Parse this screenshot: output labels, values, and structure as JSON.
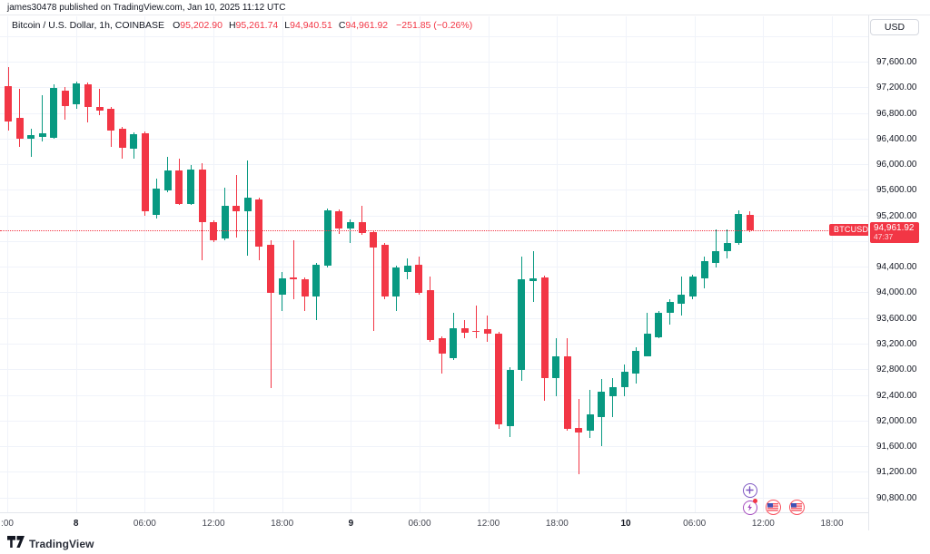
{
  "attribution": "james30478 published on TradingView.com, Jan 10, 2025 11:12 UTC",
  "legend": {
    "symbol_title": "Bitcoin / U.S. Dollar, 1h, COINBASE",
    "o_label": "O",
    "o_value": "95,202.90",
    "h_label": "H",
    "h_value": "95,261.74",
    "l_label": "L",
    "l_value": "94,940.51",
    "c_label": "C",
    "c_value": "94,961.92",
    "change": "−251.85 (−0.26%)"
  },
  "currency_button": "USD",
  "price_label": {
    "symbol": "BTCUSD",
    "price": "94,961.92",
    "countdown": "47:37"
  },
  "logo_text": "TradingView",
  "colors": {
    "up": "#089981",
    "down": "#F23645",
    "grid": "#F0F3FA",
    "axis_text": "#131722",
    "last_price_line": "#F23645",
    "event_purple": "#7E57C2",
    "event_magenta": "#A44CBE",
    "event_red": "#F7525F"
  },
  "icons": {
    "bottom_right": [
      "plus-circle-icon",
      "lightning-alert-icon",
      "us-flag-event-icon",
      "us-flag-event-icon"
    ],
    "logo": "tradingview-logo-icon"
  },
  "y_axis": {
    "max": 97600,
    "min": 90800,
    "step": 400,
    "labels": [
      {
        "p": 97600,
        "t": "97,600.00"
      },
      {
        "p": 97200,
        "t": "97,200.00"
      },
      {
        "p": 96800,
        "t": "96,800.00"
      },
      {
        "p": 96400,
        "t": "96,400.00"
      },
      {
        "p": 96000,
        "t": "96,000.00"
      },
      {
        "p": 95600,
        "t": "95,600.00"
      },
      {
        "p": 95200,
        "t": "95,200.00"
      },
      {
        "p": 94400,
        "t": "94,400.00"
      },
      {
        "p": 94000,
        "t": "94,000.00"
      },
      {
        "p": 93600,
        "t": "93,600.00"
      },
      {
        "p": 93200,
        "t": "93,200.00"
      },
      {
        "p": 92800,
        "t": "92,800.00"
      },
      {
        "p": 92400,
        "t": "92,400.00"
      },
      {
        "p": 92000,
        "t": "92,000.00"
      },
      {
        "p": 91600,
        "t": "91,600.00"
      },
      {
        "p": 91200,
        "t": "91,200.00"
      },
      {
        "p": 90800,
        "t": "90,800.00"
      }
    ]
  },
  "x_axis": {
    "ticks": [
      {
        "t": ":00",
        "d": false
      },
      {
        "t": "8",
        "d": true
      },
      {
        "t": "06:00",
        "d": false
      },
      {
        "t": "12:00",
        "d": false
      },
      {
        "t": "18:00",
        "d": false
      },
      {
        "t": "9",
        "d": true
      },
      {
        "t": "06:00",
        "d": false
      },
      {
        "t": "12:00",
        "d": false
      },
      {
        "t": "18:00",
        "d": false
      },
      {
        "t": "10",
        "d": true
      },
      {
        "t": "06:00",
        "d": false
      },
      {
        "t": "12:00",
        "d": false
      },
      {
        "t": "18:00",
        "d": false
      }
    ]
  },
  "chart_data": {
    "type": "candlestick",
    "symbol": "BTCUSD",
    "exchange": "COINBASE",
    "interval": "1h",
    "last_price": 94961.92,
    "ylim": [
      90800,
      97600
    ],
    "candles_ohlc": [
      [
        97220,
        97515,
        96525,
        96665
      ],
      [
        96725,
        97175,
        96270,
        96395
      ],
      [
        96395,
        96550,
        96110,
        96455
      ],
      [
        96425,
        97075,
        96355,
        96485
      ],
      [
        96410,
        97245,
        96395,
        97190
      ],
      [
        97145,
        97205,
        96695,
        96905
      ],
      [
        96935,
        97290,
        96865,
        97260
      ],
      [
        97245,
        97275,
        96650,
        96895
      ],
      [
        96895,
        97175,
        96765,
        96835
      ],
      [
        96865,
        96895,
        96270,
        96525
      ],
      [
        96555,
        96580,
        96085,
        96255
      ],
      [
        96240,
        96495,
        96085,
        96470
      ],
      [
        96485,
        96510,
        95195,
        95265
      ],
      [
        95210,
        95775,
        95155,
        95620
      ],
      [
        95590,
        96115,
        95565,
        95900
      ],
      [
        95900,
        96085,
        95365,
        95380
      ],
      [
        95380,
        95985,
        95365,
        95915
      ],
      [
        95915,
        96015,
        94500,
        95095
      ],
      [
        95095,
        95125,
        94785,
        94815
      ],
      [
        94840,
        95635,
        94815,
        95350
      ],
      [
        95350,
        95830,
        94855,
        95265
      ],
      [
        95265,
        96060,
        94575,
        95480
      ],
      [
        95450,
        95480,
        94500,
        94715
      ],
      [
        94740,
        94815,
        92505,
        93990
      ],
      [
        93965,
        94320,
        93710,
        94220
      ],
      [
        94235,
        94815,
        93895,
        94205
      ],
      [
        94205,
        94235,
        93710,
        93935
      ],
      [
        93935,
        94460,
        93570,
        94430
      ],
      [
        94415,
        95310,
        94390,
        95280
      ],
      [
        95265,
        95295,
        94910,
        94995
      ],
      [
        94995,
        95140,
        94770,
        95095
      ],
      [
        95095,
        95350,
        94900,
        94925
      ],
      [
        94940,
        94970,
        93400,
        94700
      ],
      [
        94740,
        94770,
        93895,
        93935
      ],
      [
        93935,
        94415,
        93710,
        94390
      ],
      [
        94320,
        94530,
        94205,
        94415
      ],
      [
        94430,
        94560,
        93965,
        93990
      ],
      [
        94035,
        94245,
        93230,
        93255
      ],
      [
        93285,
        93315,
        92735,
        93045
      ],
      [
        92975,
        93680,
        92945,
        93440
      ],
      [
        93440,
        93570,
        93285,
        93370
      ],
      [
        93400,
        93795,
        93285,
        93385
      ],
      [
        93425,
        93640,
        93230,
        93355
      ],
      [
        93355,
        93385,
        91870,
        91940
      ],
      [
        91915,
        92830,
        91745,
        92790
      ],
      [
        92790,
        94560,
        92620,
        94205
      ],
      [
        94175,
        94645,
        93850,
        94220
      ],
      [
        94235,
        94260,
        92310,
        92665
      ],
      [
        92665,
        93285,
        92380,
        93000
      ],
      [
        93000,
        93285,
        91840,
        91870
      ],
      [
        91885,
        92335,
        91165,
        91815
      ],
      [
        91840,
        92480,
        91730,
        92095
      ],
      [
        92055,
        92650,
        91600,
        92450
      ],
      [
        92380,
        92665,
        92055,
        92520
      ],
      [
        92520,
        92875,
        92380,
        92760
      ],
      [
        92735,
        93145,
        92580,
        93085
      ],
      [
        93000,
        93680,
        93000,
        93355
      ],
      [
        93300,
        93710,
        93285,
        93680
      ],
      [
        93680,
        93895,
        93495,
        93850
      ],
      [
        93825,
        94245,
        93640,
        93965
      ],
      [
        93935,
        94275,
        93895,
        94245
      ],
      [
        94220,
        94560,
        94065,
        94490
      ],
      [
        94460,
        94985,
        94390,
        94645
      ],
      [
        94645,
        94985,
        94530,
        94770
      ],
      [
        94770,
        95280,
        94740,
        95225
      ],
      [
        95202.9,
        95261.74,
        94940.51,
        94961.92
      ]
    ]
  }
}
